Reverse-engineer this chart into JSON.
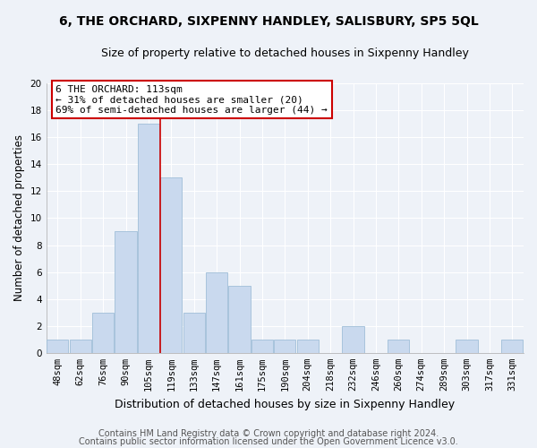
{
  "title": "6, THE ORCHARD, SIXPENNY HANDLEY, SALISBURY, SP5 5QL",
  "subtitle": "Size of property relative to detached houses in Sixpenny Handley",
  "xlabel": "Distribution of detached houses by size in Sixpenny Handley",
  "ylabel": "Number of detached properties",
  "bar_labels": [
    "48sqm",
    "62sqm",
    "76sqm",
    "90sqm",
    "105sqm",
    "119sqm",
    "133sqm",
    "147sqm",
    "161sqm",
    "175sqm",
    "190sqm",
    "204sqm",
    "218sqm",
    "232sqm",
    "246sqm",
    "260sqm",
    "274sqm",
    "289sqm",
    "303sqm",
    "317sqm",
    "331sqm"
  ],
  "bar_values": [
    1,
    1,
    3,
    9,
    17,
    13,
    3,
    6,
    5,
    1,
    1,
    1,
    0,
    2,
    0,
    1,
    0,
    0,
    1,
    0,
    1
  ],
  "bar_color": "#c9d9ee",
  "bar_edge_color": "#a0bed8",
  "vline_x": 4.5,
  "vline_color": "#cc0000",
  "annotation_title": "6 THE ORCHARD: 113sqm",
  "annotation_line1": "← 31% of detached houses are smaller (20)",
  "annotation_line2": "69% of semi-detached houses are larger (44) →",
  "annotation_box_color": "#ffffff",
  "annotation_box_edge": "#cc0000",
  "ylim": [
    0,
    20
  ],
  "yticks": [
    0,
    2,
    4,
    6,
    8,
    10,
    12,
    14,
    16,
    18,
    20
  ],
  "footnote1": "Contains HM Land Registry data © Crown copyright and database right 2024.",
  "footnote2": "Contains public sector information licensed under the Open Government Licence v3.0.",
  "title_fontsize": 10,
  "subtitle_fontsize": 9,
  "xlabel_fontsize": 9,
  "ylabel_fontsize": 8.5,
  "tick_fontsize": 7.5,
  "annotation_fontsize": 8,
  "footnote_fontsize": 7,
  "bg_color": "#eef2f8"
}
